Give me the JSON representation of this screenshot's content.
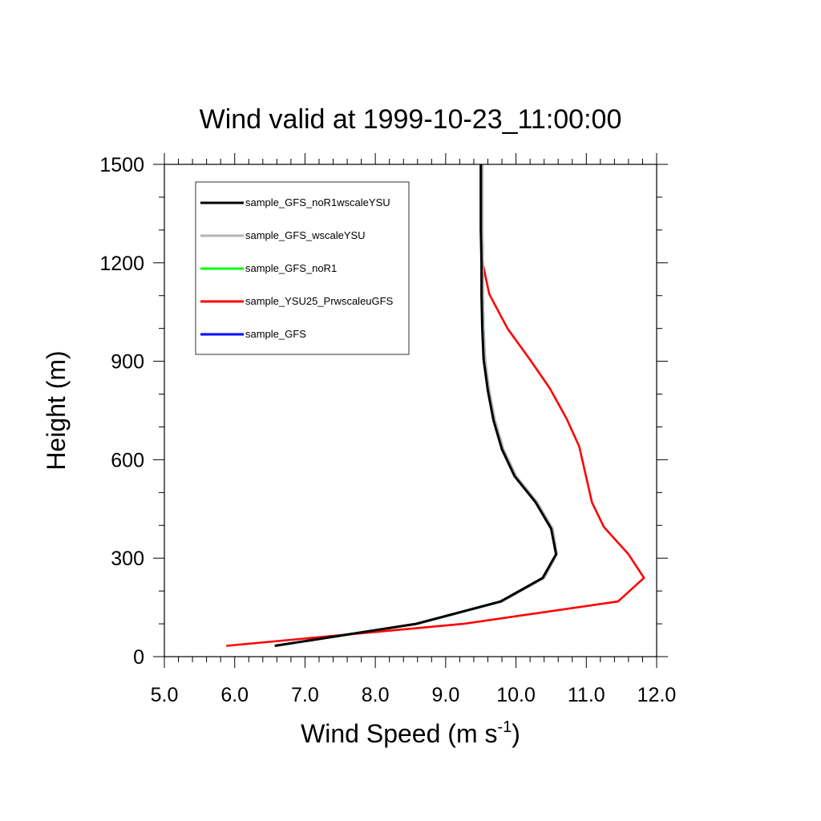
{
  "chart_data": {
    "type": "line",
    "title": "Wind valid at 1999-10-23_11:00:00",
    "xlabel": "Wind Speed (m s",
    "xlabel_superscript": "-1",
    "xlabel_suffix": ")",
    "ylabel": "Height (m)",
    "xlim": [
      5.0,
      12.0
    ],
    "ylim": [
      0,
      1500
    ],
    "xticks": [
      5.0,
      6.0,
      7.0,
      8.0,
      9.0,
      10.0,
      11.0,
      12.0
    ],
    "xtick_labels": [
      "5.0",
      "6.0",
      "7.0",
      "8.0",
      "9.0",
      "10.0",
      "11.0",
      "12.0"
    ],
    "yticks": [
      0,
      300,
      600,
      900,
      1200,
      1500
    ],
    "ytick_labels": [
      "0",
      "300",
      "600",
      "900",
      "1200",
      "1500"
    ],
    "grid": false,
    "legend_position": "top-left",
    "series": [
      {
        "name": "sample_GFS",
        "color": "#0000ff",
        "points": [
          [
            6.58,
            33
          ],
          [
            8.6,
            100
          ],
          [
            9.8,
            168
          ],
          [
            10.4,
            240
          ],
          [
            10.58,
            312
          ],
          [
            10.52,
            390
          ],
          [
            10.3,
            470
          ],
          [
            10.0,
            550
          ],
          [
            9.82,
            632
          ],
          [
            9.7,
            720
          ],
          [
            9.62,
            810
          ],
          [
            9.56,
            905
          ],
          [
            9.54,
            1000
          ],
          [
            9.53,
            1100
          ],
          [
            9.53,
            1200
          ],
          [
            9.52,
            1300
          ],
          [
            9.52,
            1400
          ],
          [
            9.52,
            1500
          ]
        ]
      },
      {
        "name": "sample_GFS_noR1",
        "color": "#00ff00",
        "points": [
          [
            6.58,
            33
          ],
          [
            8.6,
            100
          ],
          [
            9.8,
            168
          ],
          [
            10.4,
            240
          ],
          [
            10.58,
            312
          ],
          [
            10.52,
            390
          ],
          [
            10.3,
            470
          ],
          [
            10.0,
            550
          ],
          [
            9.82,
            632
          ],
          [
            9.7,
            720
          ],
          [
            9.62,
            810
          ],
          [
            9.56,
            905
          ],
          [
            9.54,
            1000
          ],
          [
            9.53,
            1100
          ],
          [
            9.53,
            1200
          ],
          [
            9.52,
            1300
          ],
          [
            9.52,
            1400
          ],
          [
            9.52,
            1500
          ]
        ]
      },
      {
        "name": "sample_YSU25_PrwscaleuGFS",
        "color": "#ff0000",
        "points": [
          [
            5.88,
            33
          ],
          [
            9.25,
            100
          ],
          [
            11.45,
            168
          ],
          [
            11.82,
            240
          ],
          [
            11.6,
            312
          ],
          [
            11.25,
            395
          ],
          [
            11.08,
            470
          ],
          [
            10.9,
            640
          ],
          [
            10.72,
            725
          ],
          [
            10.48,
            818
          ],
          [
            10.2,
            905
          ],
          [
            9.88,
            1000
          ],
          [
            9.62,
            1105
          ],
          [
            9.52,
            1205
          ],
          [
            9.51,
            1300
          ],
          [
            9.5,
            1400
          ],
          [
            9.5,
            1500
          ]
        ]
      },
      {
        "name": "sample_GFS_wscaleYSU",
        "color": "#b4b4b4",
        "points": [
          [
            6.58,
            33
          ],
          [
            8.6,
            100
          ],
          [
            9.8,
            168
          ],
          [
            10.4,
            240
          ],
          [
            10.58,
            312
          ],
          [
            10.52,
            390
          ],
          [
            10.3,
            470
          ],
          [
            10.0,
            550
          ],
          [
            9.82,
            632
          ],
          [
            9.7,
            720
          ],
          [
            9.62,
            810
          ],
          [
            9.56,
            905
          ],
          [
            9.54,
            1000
          ],
          [
            9.53,
            1100
          ],
          [
            9.53,
            1200
          ],
          [
            9.52,
            1300
          ],
          [
            9.52,
            1400
          ],
          [
            9.52,
            1500
          ]
        ]
      },
      {
        "name": "sample_GFS_noR1wscaleYSU",
        "color": "#000000",
        "points": [
          [
            6.57,
            33
          ],
          [
            8.58,
            100
          ],
          [
            9.78,
            168
          ],
          [
            10.38,
            240
          ],
          [
            10.57,
            312
          ],
          [
            10.5,
            390
          ],
          [
            10.28,
            470
          ],
          [
            9.98,
            550
          ],
          [
            9.8,
            632
          ],
          [
            9.68,
            720
          ],
          [
            9.6,
            810
          ],
          [
            9.54,
            905
          ],
          [
            9.52,
            1000
          ],
          [
            9.51,
            1100
          ],
          [
            9.51,
            1200
          ],
          [
            9.5,
            1300
          ],
          [
            9.5,
            1400
          ],
          [
            9.5,
            1500
          ]
        ]
      }
    ],
    "legend": [
      {
        "label": "sample_GFS_noR1wscaleYSU",
        "color": "#000000"
      },
      {
        "label": "sample_GFS_wscaleYSU",
        "color": "#b4b4b4"
      },
      {
        "label": "sample_GFS_noR1",
        "color": "#00ff00"
      },
      {
        "label": "sample_YSU25_PrwscaleuGFS",
        "color": "#ff0000"
      },
      {
        "label": "sample_GFS",
        "color": "#0000ff"
      }
    ]
  }
}
